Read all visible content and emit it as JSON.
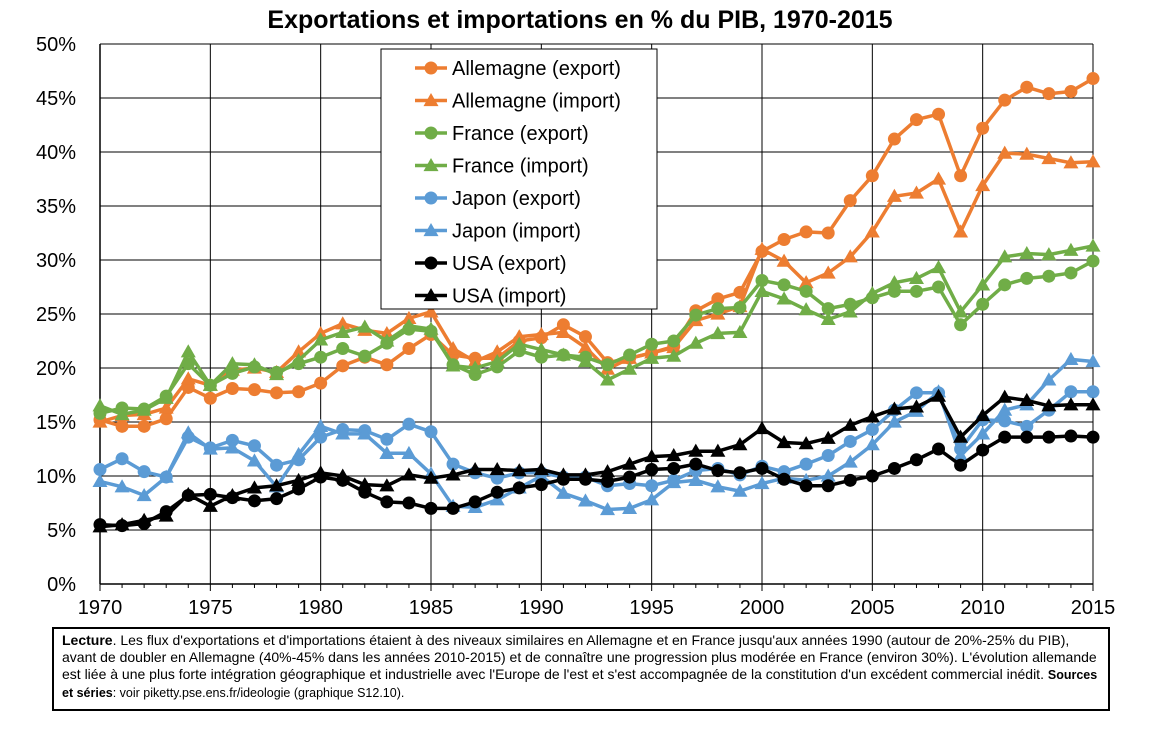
{
  "chart_data": {
    "type": "line",
    "title": "Exportations et importations en % du PIB, 1970-2015",
    "xlabel": "",
    "ylabel": "",
    "xlim": [
      1970,
      2015
    ],
    "ylim": [
      0,
      50
    ],
    "x_ticks": [
      "1970",
      "1975",
      "1980",
      "1985",
      "1990",
      "1995",
      "2000",
      "2005",
      "2010",
      "2015"
    ],
    "y_ticks": [
      "0%",
      "5%",
      "10%",
      "15%",
      "20%",
      "25%",
      "30%",
      "35%",
      "40%",
      "45%",
      "50%"
    ],
    "grid": true,
    "legend_position": "top-center",
    "x": [
      1970,
      1971,
      1972,
      1973,
      1974,
      1975,
      1976,
      1977,
      1978,
      1979,
      1980,
      1981,
      1982,
      1983,
      1984,
      1985,
      1986,
      1987,
      1988,
      1989,
      1990,
      1991,
      1992,
      1993,
      1994,
      1995,
      1996,
      1997,
      1998,
      1999,
      2000,
      2001,
      2002,
      2003,
      2004,
      2005,
      2006,
      2007,
      2008,
      2009,
      2010,
      2011,
      2012,
      2013,
      2014,
      2015
    ],
    "series": [
      {
        "name": "Allemagne (export)",
        "color": "#ed7d31",
        "marker": "circle",
        "values": [
          15.2,
          14.6,
          14.6,
          15.3,
          18.2,
          17.2,
          18.1,
          18.0,
          17.7,
          17.8,
          18.6,
          20.2,
          21.0,
          20.3,
          21.8,
          23.1,
          21.2,
          20.9,
          20.9,
          22.5,
          22.8,
          24.0,
          22.9,
          20.5,
          20.9,
          21.4,
          22.0,
          25.3,
          26.4,
          27.0,
          30.8,
          31.9,
          32.6,
          32.5,
          35.5,
          37.8,
          41.2,
          43.0,
          43.5,
          37.8,
          42.2,
          44.8,
          46.0,
          45.4,
          45.6,
          46.8
        ]
      },
      {
        "name": "Allemagne (import)",
        "color": "#ed7d31",
        "marker": "triangle",
        "values": [
          15.0,
          15.6,
          15.7,
          16.3,
          19.0,
          18.4,
          19.8,
          20.0,
          19.6,
          21.5,
          23.2,
          24.1,
          23.5,
          23.2,
          24.6,
          25.2,
          21.8,
          20.6,
          21.5,
          22.9,
          23.1,
          23.3,
          21.9,
          19.9,
          20.9,
          21.4,
          21.9,
          24.4,
          25.0,
          25.7,
          31.0,
          29.9,
          27.9,
          28.8,
          30.3,
          32.6,
          35.9,
          36.2,
          37.5,
          32.6,
          36.9,
          39.9,
          39.8,
          39.4,
          39.0,
          39.1
        ]
      },
      {
        "name": "France (export)",
        "color": "#70ad47",
        "marker": "circle",
        "values": [
          15.8,
          16.3,
          16.2,
          17.4,
          20.4,
          18.4,
          19.5,
          20.1,
          19.6,
          20.4,
          21.0,
          21.8,
          21.1,
          22.3,
          23.6,
          23.4,
          20.3,
          19.4,
          20.1,
          21.6,
          21.0,
          21.2,
          21.0,
          20.3,
          21.2,
          22.2,
          22.5,
          24.9,
          25.5,
          25.6,
          28.1,
          27.7,
          27.1,
          25.5,
          25.9,
          26.5,
          27.1,
          27.1,
          27.5,
          24.0,
          25.9,
          27.7,
          28.3,
          28.5,
          28.8,
          29.9
        ]
      },
      {
        "name": "France (import)",
        "color": "#70ad47",
        "marker": "triangle",
        "values": [
          16.5,
          15.7,
          16.1,
          17.2,
          21.5,
          18.4,
          20.4,
          20.3,
          19.4,
          20.7,
          22.6,
          23.3,
          23.8,
          22.5,
          23.9,
          23.6,
          20.2,
          20.0,
          20.6,
          22.2,
          21.7,
          21.2,
          20.6,
          18.9,
          19.9,
          20.9,
          21.1,
          22.3,
          23.2,
          23.3,
          27.1,
          26.4,
          25.4,
          24.5,
          25.2,
          26.9,
          27.9,
          28.3,
          29.3,
          25.2,
          27.7,
          30.3,
          30.6,
          30.5,
          30.9,
          31.3
        ]
      },
      {
        "name": "Japon (export)",
        "color": "#5b9bd5",
        "marker": "circle",
        "values": [
          10.6,
          11.6,
          10.4,
          9.9,
          13.6,
          12.6,
          13.3,
          12.8,
          11.0,
          11.5,
          13.6,
          14.3,
          14.2,
          13.4,
          14.8,
          14.1,
          11.1,
          10.3,
          9.8,
          10.3,
          10.3,
          9.9,
          9.9,
          9.1,
          9.3,
          9.1,
          9.6,
          10.5,
          10.7,
          10.1,
          10.9,
          10.4,
          11.1,
          11.9,
          13.2,
          14.3,
          16.1,
          17.7,
          17.7,
          12.5,
          15.2,
          15.1,
          14.6,
          16.1,
          17.8,
          17.8
        ]
      },
      {
        "name": "Japon (import)",
        "color": "#5b9bd5",
        "marker": "triangle",
        "values": [
          9.5,
          9.0,
          8.2,
          9.9,
          14.0,
          12.5,
          12.6,
          11.4,
          9.0,
          12.0,
          14.6,
          13.9,
          13.9,
          12.1,
          12.1,
          10.2,
          7.2,
          7.1,
          7.8,
          8.9,
          10.0,
          8.4,
          7.7,
          6.9,
          7.0,
          7.8,
          9.4,
          9.6,
          9.0,
          8.6,
          9.3,
          9.8,
          9.6,
          10.0,
          11.3,
          12.9,
          15.0,
          16.0,
          17.8,
          11.9,
          13.9,
          16.1,
          16.6,
          18.9,
          20.8,
          20.6
        ]
      },
      {
        "name": "USA (export)",
        "color": "#000000",
        "marker": "circle",
        "values": [
          5.5,
          5.4,
          5.6,
          6.7,
          8.2,
          8.3,
          8.0,
          7.7,
          7.9,
          8.8,
          9.9,
          9.6,
          8.5,
          7.6,
          7.5,
          7.0,
          7.0,
          7.6,
          8.5,
          8.9,
          9.2,
          9.7,
          9.7,
          9.5,
          9.9,
          10.6,
          10.7,
          11.1,
          10.5,
          10.3,
          10.7,
          9.7,
          9.1,
          9.1,
          9.6,
          10.0,
          10.7,
          11.5,
          12.5,
          11.0,
          12.4,
          13.6,
          13.6,
          13.6,
          13.7,
          13.6
        ]
      },
      {
        "name": "USA (import)",
        "color": "#000000",
        "marker": "triangle",
        "values": [
          5.3,
          5.5,
          5.9,
          6.3,
          8.3,
          7.2,
          8.2,
          8.9,
          9.1,
          9.6,
          10.3,
          10.0,
          9.2,
          9.1,
          10.1,
          9.8,
          10.1,
          10.6,
          10.6,
          10.5,
          10.6,
          10.1,
          10.1,
          10.4,
          11.1,
          11.8,
          11.9,
          12.3,
          12.3,
          12.9,
          14.4,
          13.1,
          13.0,
          13.5,
          14.7,
          15.5,
          16.2,
          16.4,
          17.4,
          13.6,
          15.6,
          17.3,
          17.0,
          16.5,
          16.6,
          16.6
        ]
      }
    ]
  },
  "caption": {
    "lecture_label": "Lecture",
    "lecture_text": ". Les flux d'exportations et d'importations étaient à des niveaux similaires en Allemagne et en France jusqu'aux années 1990 (autour de 20%-25% du PIB), avant de doubler en Allemagne (40%-45% dans les années 2010-2015) et de connaître une progression plus modérée en France (environ 30%). L'évolution allemande est liée à une plus forte intégration géographique et industrielle avec l'Europe de l'est et s'est accompagnée de la constitution d'un excédent commercial inédit. ",
    "sources_label": "Sources et séries",
    "sources_text": ": voir piketty.pse.ens.fr/ideologie (graphique S12.10)."
  }
}
